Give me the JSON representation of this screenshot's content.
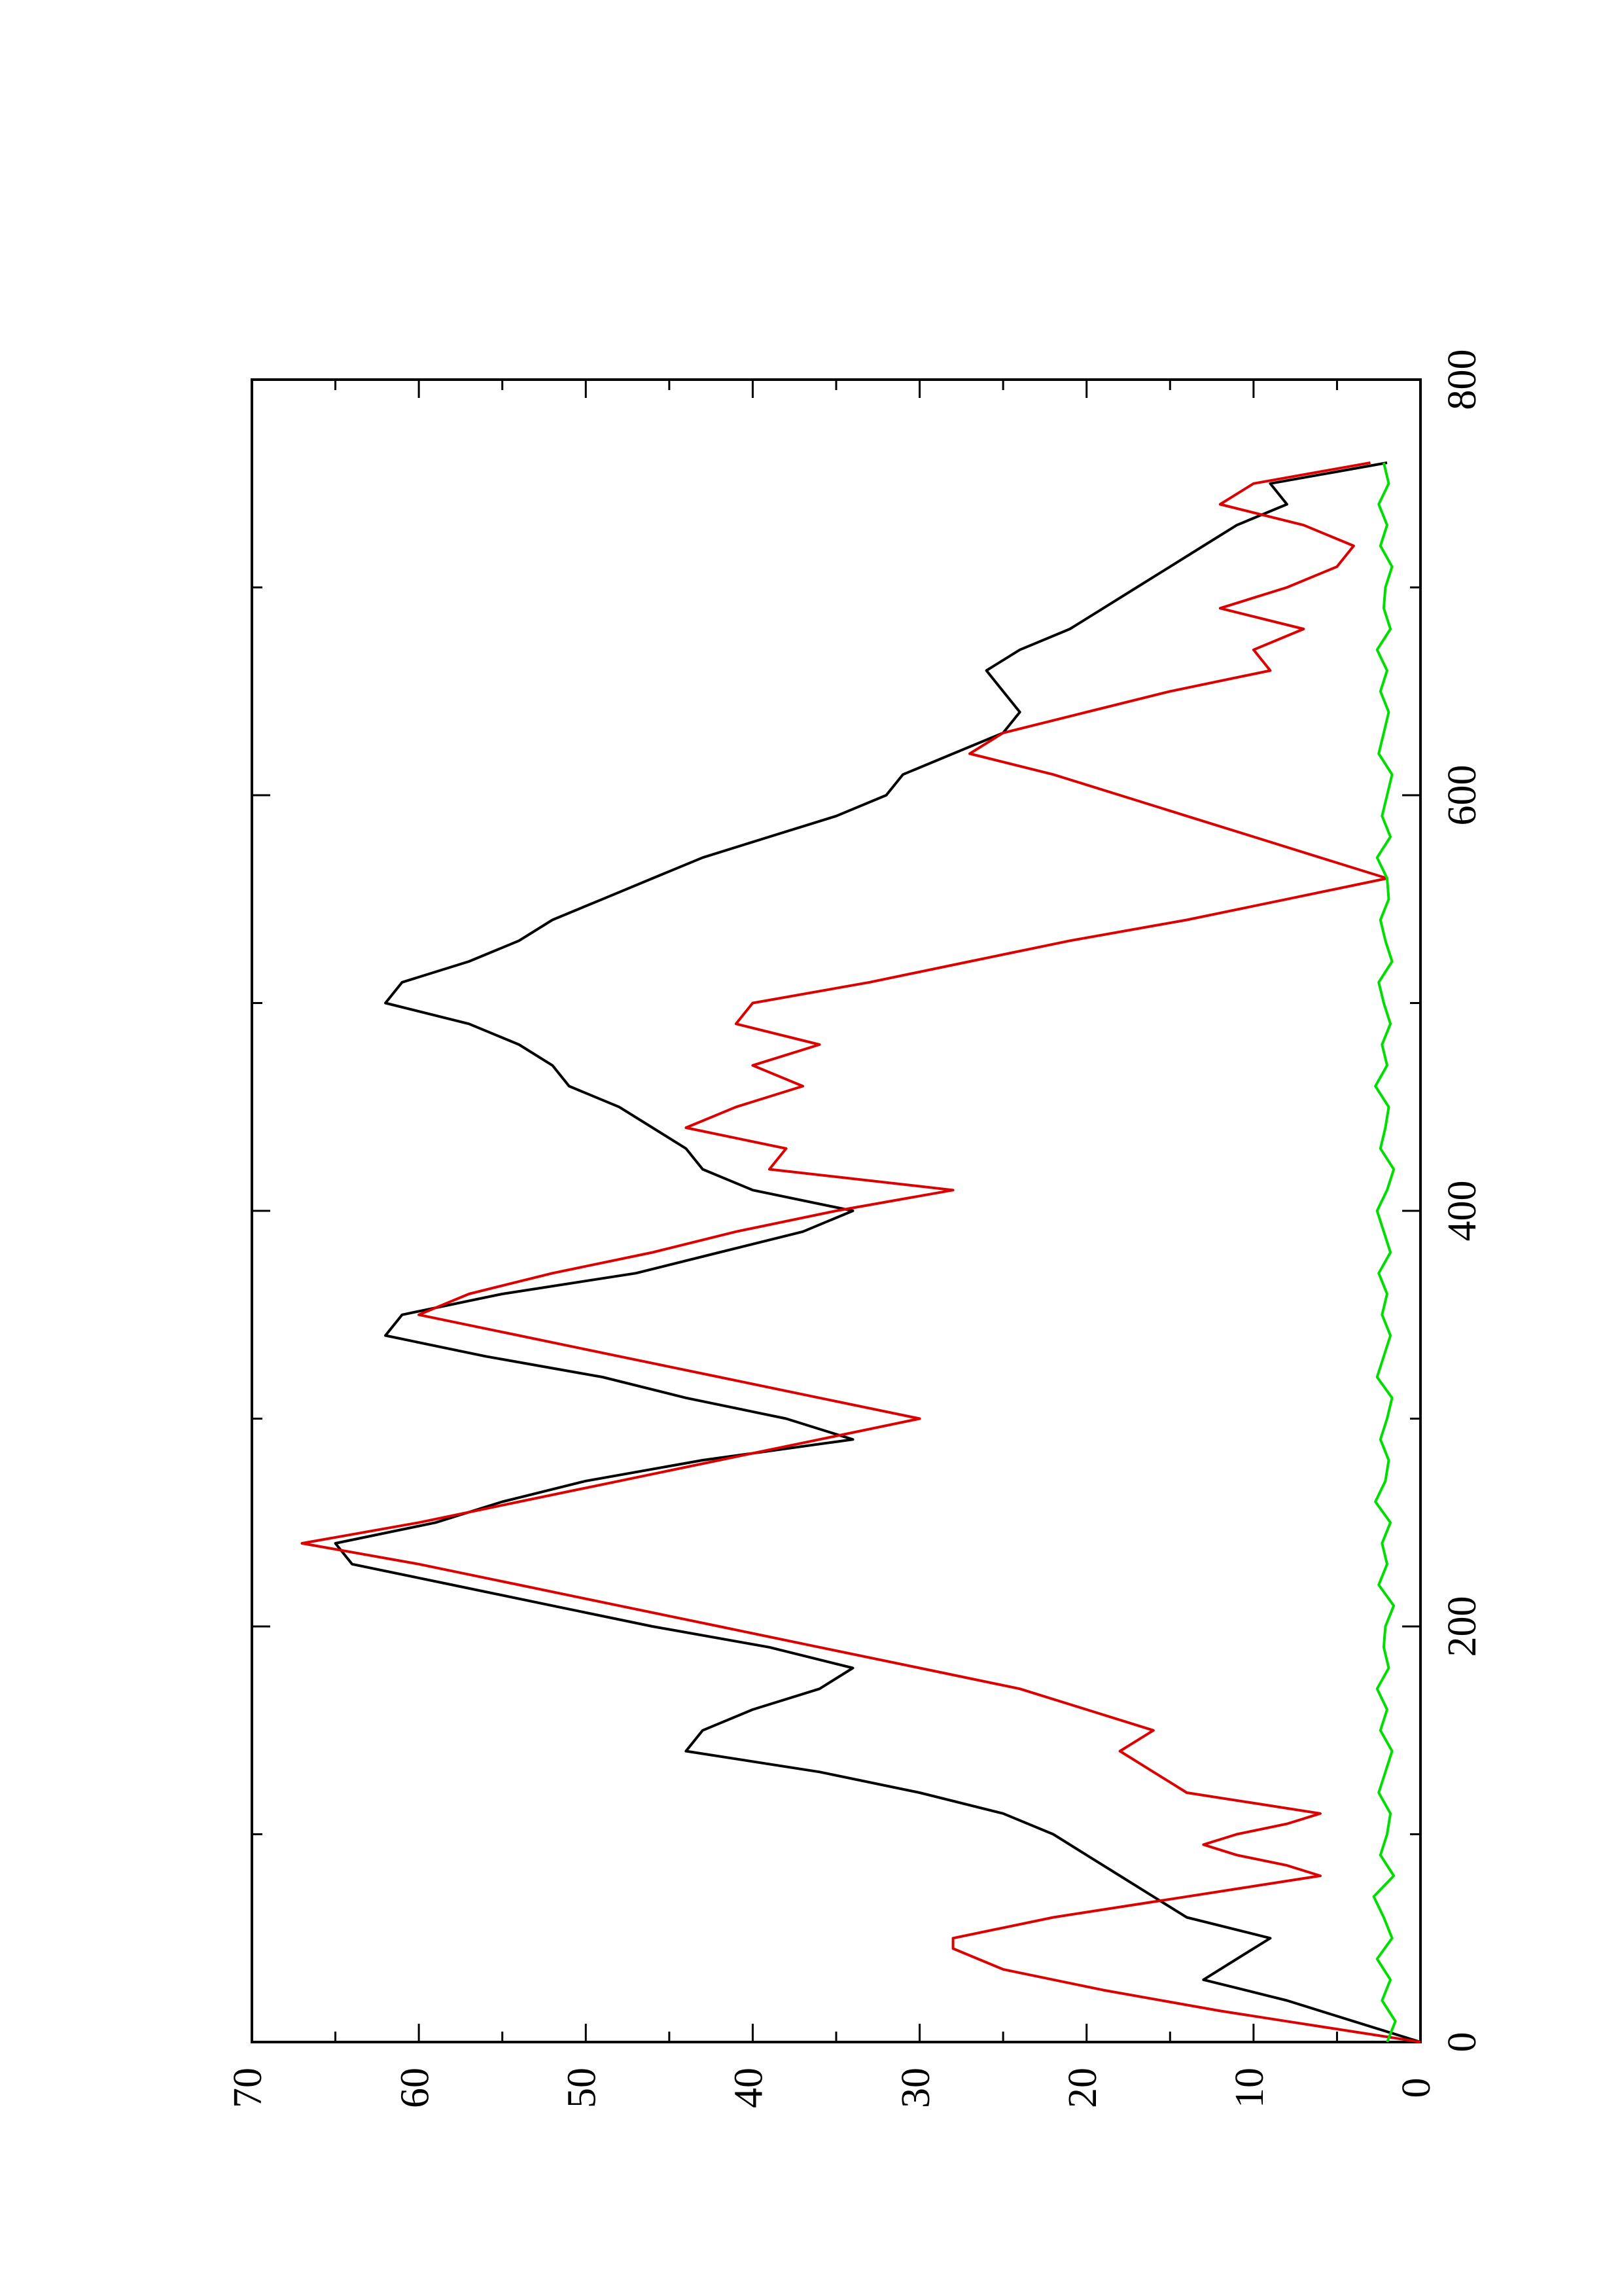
{
  "chart_data": {
    "type": "line",
    "orientation": "rotated-90-ccw",
    "title": "",
    "xlabel": "",
    "ylabel": "",
    "xlim": [
      0,
      800
    ],
    "ylim": [
      0,
      70
    ],
    "x_ticks": [
      {
        "value": 0,
        "label": "0"
      },
      {
        "value": 200,
        "label": "200"
      },
      {
        "value": 400,
        "label": "400"
      },
      {
        "value": 600,
        "label": "600"
      },
      {
        "value": 800,
        "label": "800"
      }
    ],
    "y_ticks": [
      {
        "value": 0,
        "label": "0"
      },
      {
        "value": 10,
        "label": "10"
      },
      {
        "value": 20,
        "label": "20"
      },
      {
        "value": 30,
        "label": "30"
      },
      {
        "value": 40,
        "label": "40"
      },
      {
        "value": 50,
        "label": "50"
      },
      {
        "value": 60,
        "label": "60"
      },
      {
        "value": 70,
        "label": "70"
      }
    ],
    "grid": false,
    "legend": "none",
    "series": [
      {
        "color": "#000000",
        "x": [
          0,
          10,
          20,
          30,
          40,
          50,
          60,
          70,
          80,
          90,
          100,
          110,
          120,
          130,
          140,
          150,
          160,
          170,
          180,
          190,
          200,
          210,
          220,
          230,
          240,
          250,
          260,
          270,
          280,
          290,
          300,
          310,
          320,
          330,
          340,
          350,
          360,
          370,
          380,
          390,
          400,
          410,
          420,
          430,
          440,
          450,
          460,
          470,
          480,
          490,
          500,
          510,
          520,
          530,
          540,
          550,
          560,
          570,
          580,
          590,
          600,
          610,
          620,
          630,
          640,
          650,
          660,
          670,
          680,
          690,
          700,
          710,
          720,
          730,
          740,
          750,
          760
        ],
        "y": [
          0,
          4,
          8,
          13,
          11,
          9,
          14,
          16,
          18,
          20,
          22,
          25,
          30,
          36,
          44,
          43,
          40,
          36,
          34,
          39,
          46,
          52,
          58,
          64,
          65,
          59,
          55,
          50,
          43,
          34,
          38,
          44,
          49,
          56,
          62,
          61,
          55,
          47,
          42,
          37,
          34,
          40,
          43,
          44,
          46,
          48,
          51,
          52,
          54,
          57,
          62,
          61,
          57,
          54,
          52,
          49,
          46,
          43,
          39,
          35,
          32,
          31,
          28,
          25,
          24,
          25,
          26,
          24,
          21,
          19,
          17,
          15,
          13,
          11,
          8,
          9,
          2
        ]
      },
      {
        "color": "#dd0000",
        "x": [
          0,
          5,
          10,
          15,
          25,
          35,
          45,
          50,
          55,
          60,
          65,
          70,
          75,
          80,
          85,
          90,
          95,
          100,
          105,
          110,
          115,
          120,
          125,
          130,
          140,
          150,
          160,
          170,
          180,
          190,
          200,
          210,
          220,
          230,
          240,
          250,
          260,
          270,
          280,
          290,
          300,
          310,
          320,
          330,
          340,
          350,
          360,
          370,
          380,
          390,
          400,
          410,
          420,
          430,
          440,
          450,
          460,
          470,
          480,
          490,
          500,
          510,
          520,
          530,
          540,
          550,
          560,
          570,
          580,
          590,
          600,
          610,
          620,
          630,
          640,
          650,
          660,
          670,
          680,
          690,
          700,
          710,
          720,
          730,
          740,
          750,
          760
        ],
        "y": [
          0,
          4,
          8,
          12,
          19,
          25,
          28,
          28,
          25,
          22,
          18,
          14,
          10,
          6,
          8,
          11,
          13,
          11,
          8,
          6,
          10,
          14,
          15,
          16,
          18,
          16,
          20,
          24,
          30,
          36,
          42,
          48,
          54,
          60,
          67,
          60,
          54,
          48,
          42,
          36,
          30,
          36,
          42,
          48,
          54,
          60,
          57,
          52,
          46,
          41,
          35,
          28,
          39,
          38,
          44,
          41,
          37,
          40,
          36,
          41,
          40,
          33,
          27,
          21,
          14,
          8,
          2,
          6,
          10,
          14,
          18,
          22,
          27,
          25,
          20,
          15,
          9,
          10,
          7,
          12,
          8,
          5,
          4,
          7,
          12,
          10,
          3
        ]
      },
      {
        "color": "#00dd00",
        "x": [
          0,
          10,
          20,
          30,
          40,
          50,
          60,
          70,
          80,
          90,
          100,
          110,
          120,
          130,
          140,
          150,
          160,
          170,
          180,
          190,
          200,
          210,
          220,
          230,
          240,
          250,
          260,
          270,
          280,
          290,
          300,
          310,
          320,
          330,
          340,
          350,
          360,
          370,
          380,
          390,
          400,
          410,
          420,
          430,
          440,
          450,
          460,
          470,
          480,
          490,
          500,
          510,
          520,
          530,
          540,
          550,
          560,
          570,
          580,
          590,
          600,
          610,
          620,
          630,
          640,
          650,
          660,
          670,
          680,
          690,
          700,
          710,
          720,
          730,
          740,
          750,
          760
        ],
        "y": [
          2.0,
          1.5,
          2.3,
          1.8,
          2.6,
          1.7,
          2.2,
          2.8,
          1.6,
          2.4,
          2.0,
          1.8,
          2.5,
          2.1,
          1.7,
          2.4,
          2.0,
          2.6,
          1.9,
          2.2,
          2.1,
          1.6,
          2.5,
          2.0,
          2.3,
          1.8,
          2.7,
          2.1,
          1.9,
          2.4,
          2.0,
          1.7,
          2.6,
          2.2,
          1.8,
          2.3,
          2.0,
          2.5,
          1.8,
          2.2,
          2.6,
          2.0,
          1.6,
          2.4,
          2.1,
          1.9,
          2.7,
          2.0,
          2.3,
          1.8,
          2.2,
          2.5,
          1.7,
          2.1,
          2.4,
          1.9,
          2.0,
          2.6,
          1.8,
          2.3,
          2.0,
          1.7,
          2.5,
          2.2,
          1.9,
          2.4,
          2.0,
          2.6,
          1.8,
          2.2,
          2.1,
          1.7,
          2.4,
          2.0,
          2.5,
          1.9,
          2.2
        ]
      }
    ]
  }
}
